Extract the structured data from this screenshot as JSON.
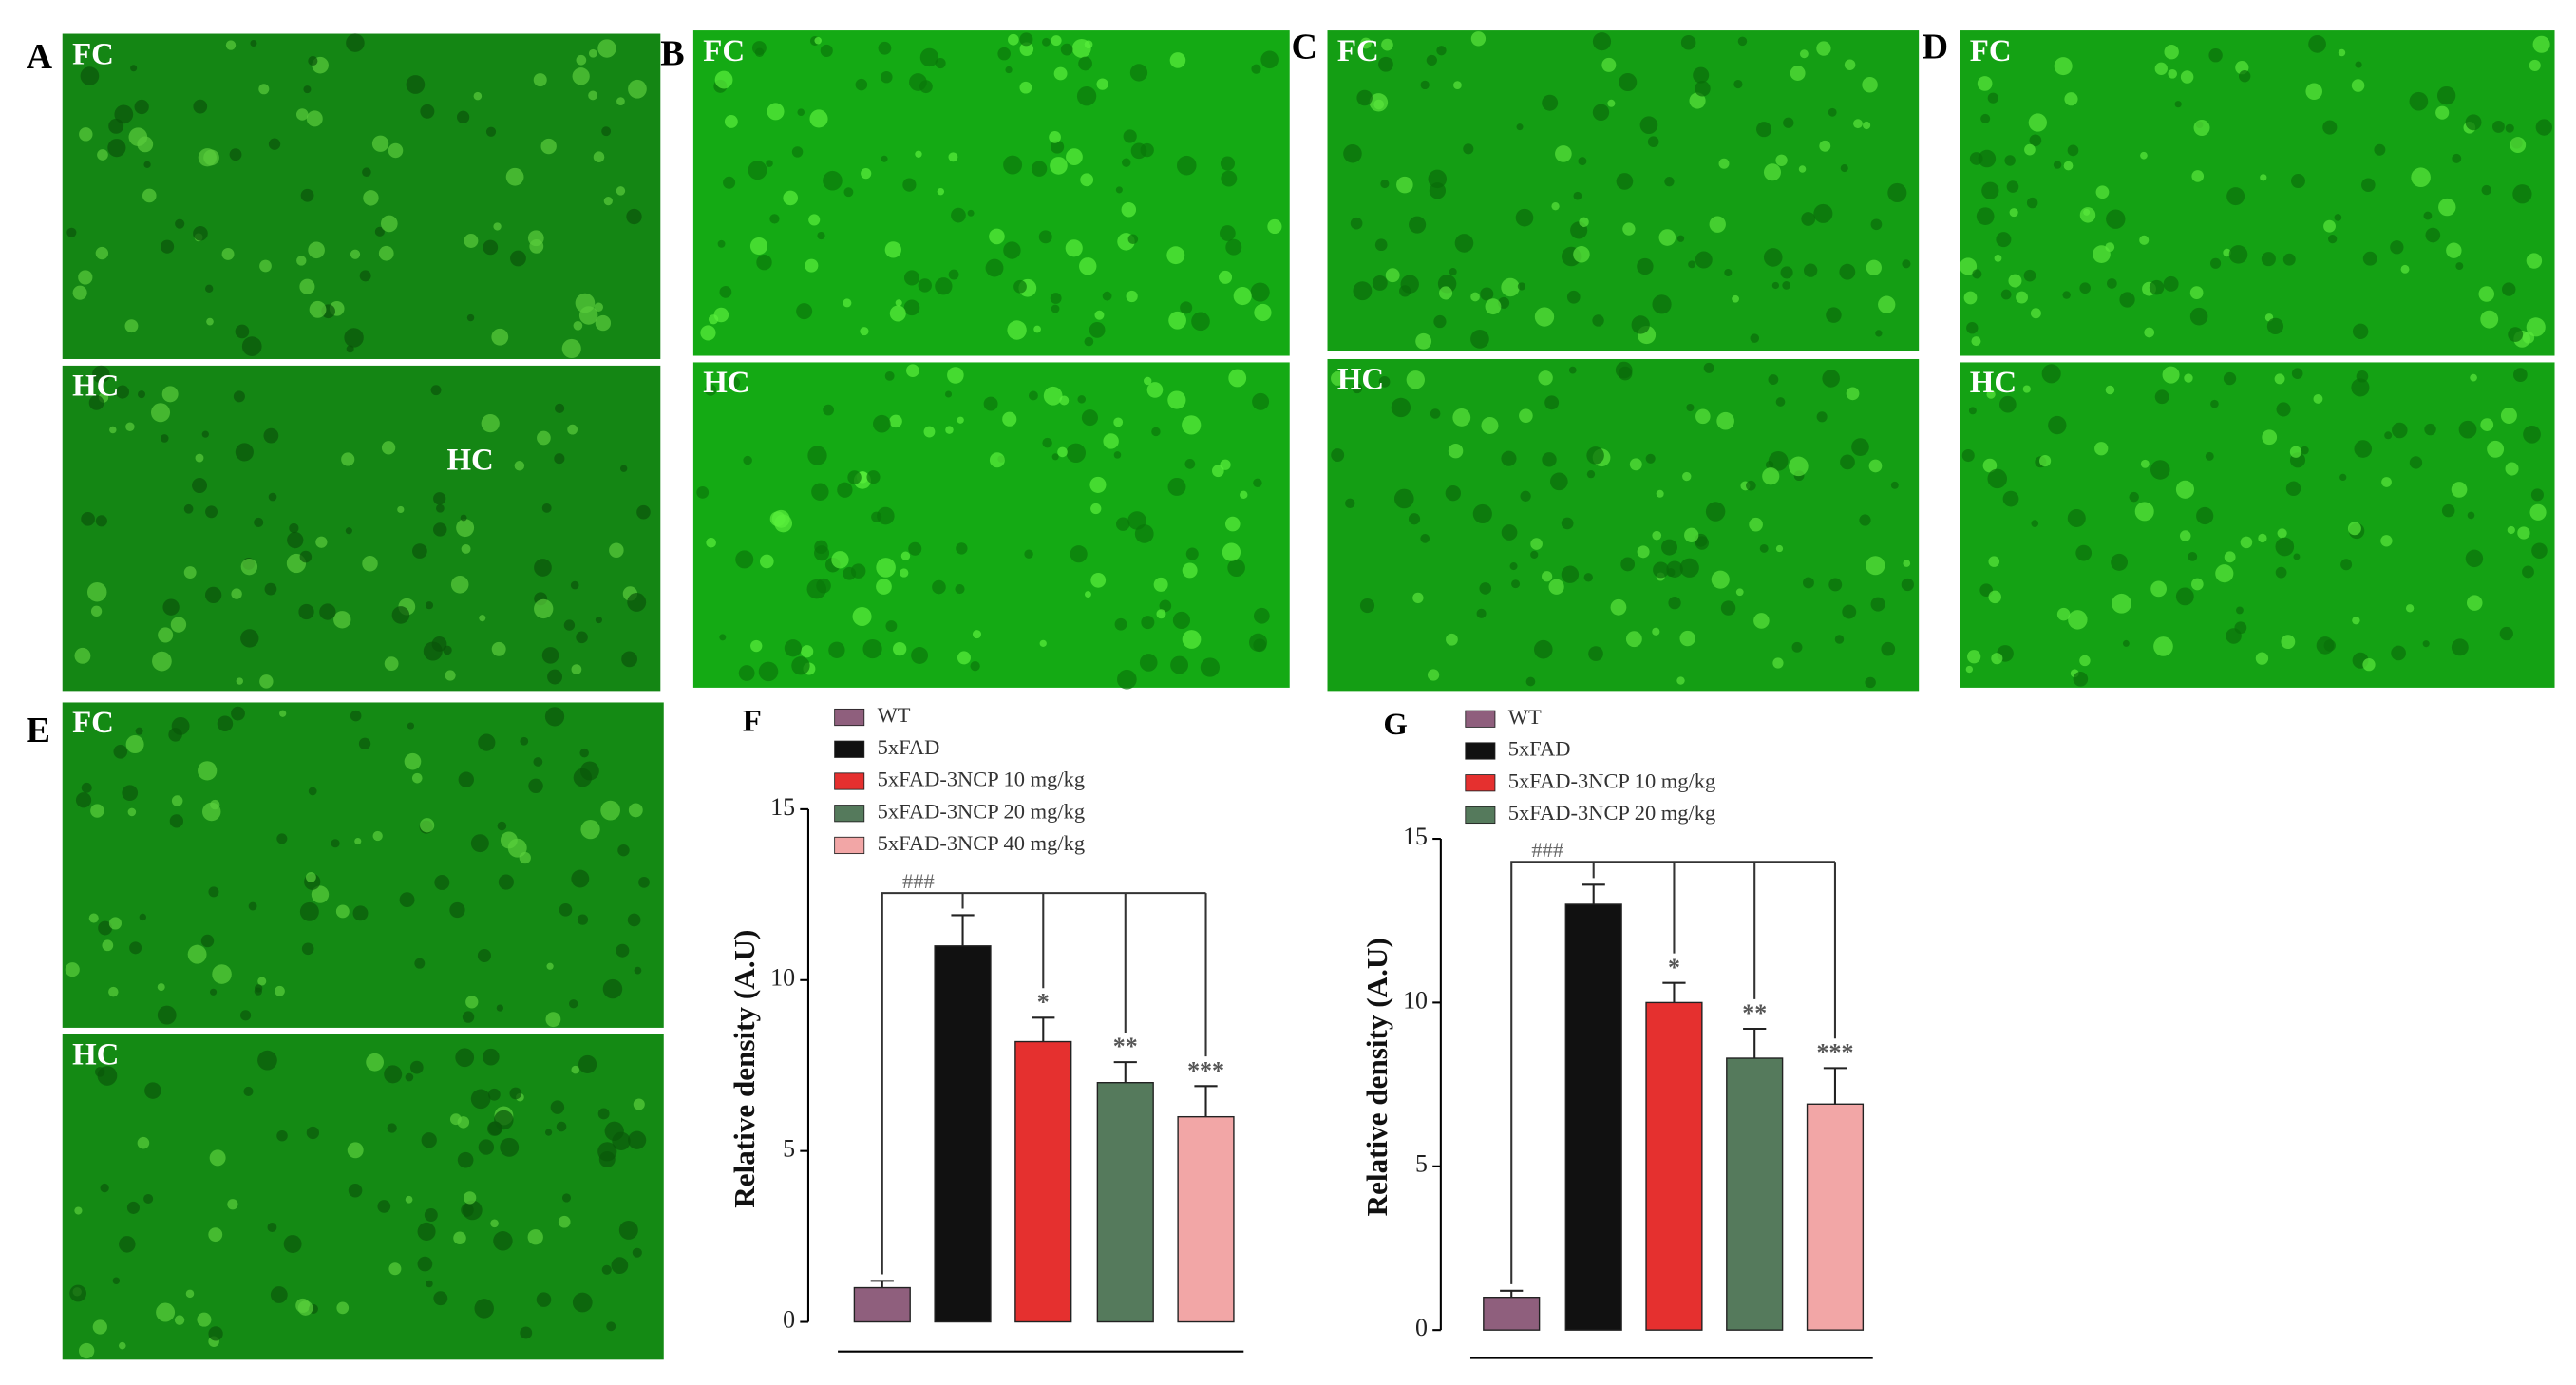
{
  "panels": [
    {
      "label": "A",
      "regions": [
        "FC",
        "HC"
      ],
      "inner_label": "HC"
    },
    {
      "label": "B",
      "regions": [
        "FC",
        "HC"
      ]
    },
    {
      "label": "C",
      "regions": [
        "FC",
        "HC"
      ]
    },
    {
      "label": "D",
      "regions": [
        "FC",
        "HC"
      ]
    },
    {
      "label": "E",
      "regions": [
        "FC",
        "HC"
      ]
    }
  ],
  "chart_data": [
    {
      "type": "bar",
      "panel_label": "F",
      "y_label": "Relative density (A.U)",
      "ylim": [
        0,
        15
      ],
      "yticks": [
        0,
        5,
        10,
        15
      ],
      "bracket_label": "###",
      "significance": [
        null,
        null,
        "*",
        "**",
        "***"
      ],
      "series": [
        {
          "name": "WT",
          "color": "#8f5f7d",
          "values": [
            1
          ],
          "errors": [
            0.2
          ]
        },
        {
          "name": "5xFAD",
          "color": "#111111",
          "values": [
            11
          ],
          "errors": [
            0.9
          ]
        },
        {
          "name": "5xFAD-3NCP 10 mg/kg",
          "color": "#e5302f",
          "values": [
            8.2
          ],
          "errors": [
            0.7
          ]
        },
        {
          "name": "5xFAD-3NCP 20 mg/kg",
          "color": "#557a5c",
          "values": [
            7
          ],
          "errors": [
            0.6
          ]
        },
        {
          "name": "5xFAD-3NCP 40 mg/kg",
          "color": "#f2a6a6",
          "values": [
            6
          ],
          "errors": [
            0.9
          ]
        }
      ]
    },
    {
      "type": "bar",
      "panel_label": "G",
      "y_label": "Relative density (A.U)",
      "ylim": [
        0,
        15
      ],
      "yticks": [
        0,
        5,
        10,
        15
      ],
      "bracket_label": "###",
      "significance": [
        null,
        null,
        "*",
        "**",
        "***"
      ],
      "series": [
        {
          "name": "WT",
          "color": "#8f5f7d",
          "values": [
            1
          ],
          "errors": [
            0.2
          ]
        },
        {
          "name": "5xFAD",
          "color": "#111111",
          "values": [
            13
          ],
          "errors": [
            0.6
          ]
        },
        {
          "name": "5xFAD-3NCP 10 mg/kg",
          "color": "#e5302f",
          "values": [
            10
          ],
          "errors": [
            0.6
          ]
        },
        {
          "name": "5xFAD-3NCP 20 mg/kg",
          "color": "#557a5c",
          "values": [
            8.3
          ],
          "errors": [
            0.9
          ]
        },
        {
          "color": "#f2a6a6",
          "values": [
            6.9
          ],
          "errors": [
            1.1
          ]
        }
      ]
    }
  ]
}
